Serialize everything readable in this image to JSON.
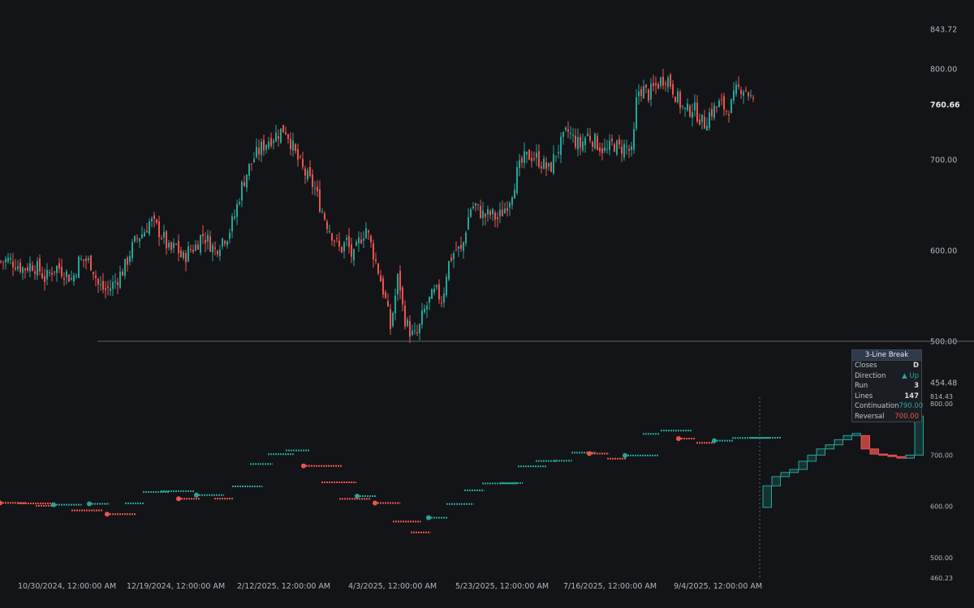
{
  "chart_data": [
    {
      "type": "candlestick",
      "ylim": [
        454.48,
        843.72
      ],
      "y_ticks": [
        "843.72",
        "800.00",
        "700.00",
        "600.00",
        "500.00",
        "454.48"
      ],
      "last_price": "760.66",
      "horizontal_line": 500,
      "x_tick_labels": [
        "10/30/2024, 12:00:00 AM",
        "12/19/2024, 12:00:00 AM",
        "2/12/2025, 12:00:00 AM",
        "4/3/2025, 12:00:00 AM",
        "5/23/2025, 12:00:00 AM",
        "7/16/2025, 12:00:00 AM",
        "9/4/2025, 12:00:00 AM"
      ],
      "closes_path": [
        [
          0,
          588
        ],
        [
          8,
          590
        ],
        [
          18,
          586
        ],
        [
          28,
          580
        ],
        [
          38,
          585
        ],
        [
          48,
          578
        ],
        [
          55,
          568
        ],
        [
          62,
          578
        ],
        [
          70,
          582
        ],
        [
          80,
          575
        ],
        [
          88,
          568
        ],
        [
          96,
          588
        ],
        [
          104,
          590
        ],
        [
          112,
          585
        ],
        [
          120,
          562
        ],
        [
          128,
          556
        ],
        [
          136,
          560
        ],
        [
          144,
          570
        ],
        [
          152,
          580
        ],
        [
          160,
          600
        ],
        [
          168,
          614
        ],
        [
          176,
          620
        ],
        [
          184,
          633
        ],
        [
          192,
          625
        ],
        [
          200,
          615
        ],
        [
          208,
          598
        ],
        [
          216,
          605
        ],
        [
          224,
          590
        ],
        [
          232,
          600
        ],
        [
          240,
          605
        ],
        [
          248,
          618
        ],
        [
          256,
          610
        ],
        [
          264,
          600
        ],
        [
          272,
          612
        ],
        [
          280,
          618
        ],
        [
          288,
          638
        ],
        [
          296,
          668
        ],
        [
          304,
          688
        ],
        [
          312,
          702
        ],
        [
          320,
          712
        ],
        [
          330,
          722
        ],
        [
          340,
          728
        ],
        [
          350,
          735
        ],
        [
          355,
          725
        ],
        [
          362,
          708
        ],
        [
          370,
          692
        ],
        [
          378,
          680
        ],
        [
          386,
          670
        ],
        [
          394,
          648
        ],
        [
          402,
          630
        ],
        [
          410,
          615
        ],
        [
          418,
          600
        ],
        [
          426,
          610
        ],
        [
          434,
          590
        ],
        [
          442,
          612
        ],
        [
          450,
          625
        ],
        [
          458,
          600
        ],
        [
          466,
          575
        ],
        [
          474,
          545
        ],
        [
          480,
          515
        ],
        [
          486,
          550
        ],
        [
          490,
          575
        ],
        [
          496,
          530
        ],
        [
          502,
          515
        ],
        [
          508,
          505
        ],
        [
          514,
          508
        ],
        [
          520,
          530
        ],
        [
          528,
          545
        ],
        [
          536,
          555
        ],
        [
          544,
          545
        ],
        [
          550,
          582
        ],
        [
          556,
          595
        ],
        [
          562,
          602
        ],
        [
          568,
          598
        ],
        [
          574,
          630
        ],
        [
          580,
          650
        ],
        [
          588,
          645
        ],
        [
          596,
          638
        ],
        [
          604,
          640
        ],
        [
          612,
          635
        ],
        [
          620,
          645
        ],
        [
          628,
          660
        ],
        [
          636,
          685
        ],
        [
          644,
          700
        ],
        [
          652,
          705
        ],
        [
          660,
          702
        ],
        [
          668,
          695
        ],
        [
          676,
          688
        ],
        [
          684,
          708
        ],
        [
          692,
          720
        ],
        [
          698,
          732
        ],
        [
          706,
          722
        ],
        [
          714,
          715
        ],
        [
          722,
          728
        ],
        [
          730,
          722
        ],
        [
          738,
          715
        ],
        [
          746,
          708
        ],
        [
          754,
          718
        ],
        [
          762,
          712
        ],
        [
          770,
          715
        ],
        [
          778,
          705
        ],
        [
          784,
          775
        ],
        [
          790,
          778
        ],
        [
          798,
          772
        ],
        [
          806,
          780
        ],
        [
          814,
          788
        ],
        [
          820,
          792
        ],
        [
          826,
          782
        ],
        [
          832,
          770
        ],
        [
          838,
          760
        ],
        [
          844,
          752
        ],
        [
          852,
          758
        ],
        [
          860,
          748
        ],
        [
          866,
          738
        ],
        [
          872,
          750
        ],
        [
          878,
          755
        ],
        [
          886,
          762
        ],
        [
          894,
          755
        ],
        [
          900,
          760
        ],
        [
          906,
          775
        ],
        [
          912,
          780
        ],
        [
          918,
          778
        ],
        [
          924,
          768
        ],
        [
          928,
          760.66
        ]
      ]
    },
    {
      "type": "three-line-break",
      "ylim": [
        460.23,
        814.43
      ],
      "y_ticks": [
        "814.43",
        "800.00",
        "700.00",
        "600.00",
        "500.00",
        "460.23"
      ],
      "bricks": [
        {
          "o": 598,
          "c": 640,
          "d": "up"
        },
        {
          "o": 640,
          "c": 658,
          "d": "up"
        },
        {
          "o": 658,
          "c": 666,
          "d": "up"
        },
        {
          "o": 666,
          "c": 672,
          "d": "up"
        },
        {
          "o": 672,
          "c": 688,
          "d": "up"
        },
        {
          "o": 688,
          "c": 700,
          "d": "up"
        },
        {
          "o": 700,
          "c": 712,
          "d": "up"
        },
        {
          "o": 712,
          "c": 720,
          "d": "up"
        },
        {
          "o": 720,
          "c": 730,
          "d": "up"
        },
        {
          "o": 730,
          "c": 738,
          "d": "up"
        },
        {
          "o": 738,
          "c": 742,
          "d": "up"
        },
        {
          "o": 738,
          "c": 712,
          "d": "down"
        },
        {
          "o": 712,
          "c": 702,
          "d": "down"
        },
        {
          "o": 702,
          "c": 700,
          "d": "down"
        },
        {
          "o": 700,
          "c": 697,
          "d": "down"
        },
        {
          "o": 697,
          "c": 694,
          "d": "down"
        },
        {
          "o": 694,
          "c": 700,
          "d": "up"
        },
        {
          "o": 700,
          "c": 776,
          "d": "up"
        }
      ]
    }
  ],
  "info_box": {
    "title": "3-Line Break",
    "rows": [
      {
        "label": "Closes",
        "value": "D"
      },
      {
        "label": "Direction",
        "value": "▲ Up"
      },
      {
        "label": "Run",
        "value": "3"
      },
      {
        "label": "Lines",
        "value": "147"
      },
      {
        "label": "Continuation",
        "value": "790.00"
      },
      {
        "label": "Reversal",
        "value": "700.00"
      }
    ]
  },
  "colors": {
    "background": "#131417",
    "up": "#26a69a",
    "down": "#ef5350",
    "axis_text": "#b2b5be",
    "grid_line": "#5a636e"
  }
}
